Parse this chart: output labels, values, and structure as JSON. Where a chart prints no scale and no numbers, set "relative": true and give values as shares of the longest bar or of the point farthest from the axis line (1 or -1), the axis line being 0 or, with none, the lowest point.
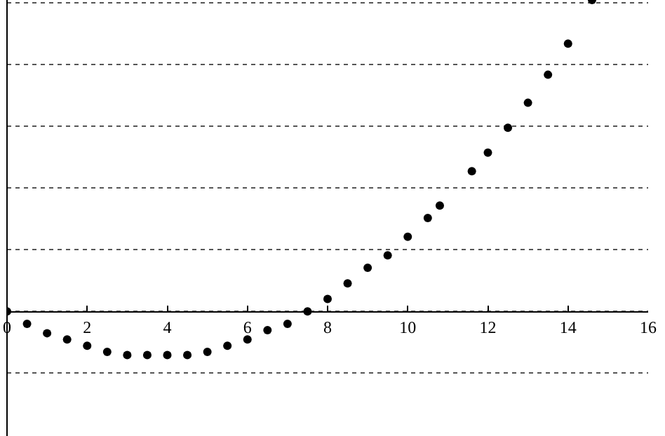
{
  "chart_data": {
    "type": "scatter",
    "relative": true,
    "x": [
      0,
      0.5,
      1,
      1.5,
      2,
      2.5,
      3,
      3.5,
      4,
      4.5,
      5,
      5.5,
      6,
      6.5,
      7,
      7.5,
      8,
      8.5,
      9,
      9.5,
      10,
      10.5,
      10.8,
      11.6,
      12,
      12.5,
      13,
      13.5,
      14,
      14.6
    ],
    "series": [
      {
        "color": "#000000",
        "values": [
          0,
          -0.04,
          -0.07,
          -0.09,
          -0.11,
          -0.13,
          -0.14,
          -0.14,
          -0.14,
          -0.14,
          -0.13,
          -0.11,
          -0.09,
          -0.06,
          -0.04,
          0,
          0.04,
          0.09,
          0.14,
          0.18,
          0.24,
          0.3,
          0.34,
          0.45,
          0.51,
          0.59,
          0.67,
          0.76,
          0.86,
          1
        ]
      }
    ],
    "xlim": [
      0,
      16
    ],
    "xticks": [
      0,
      2,
      4,
      6,
      8,
      10,
      12,
      14,
      16
    ],
    "grid": "y",
    "tick_labels": "x",
    "marker": "circle"
  }
}
